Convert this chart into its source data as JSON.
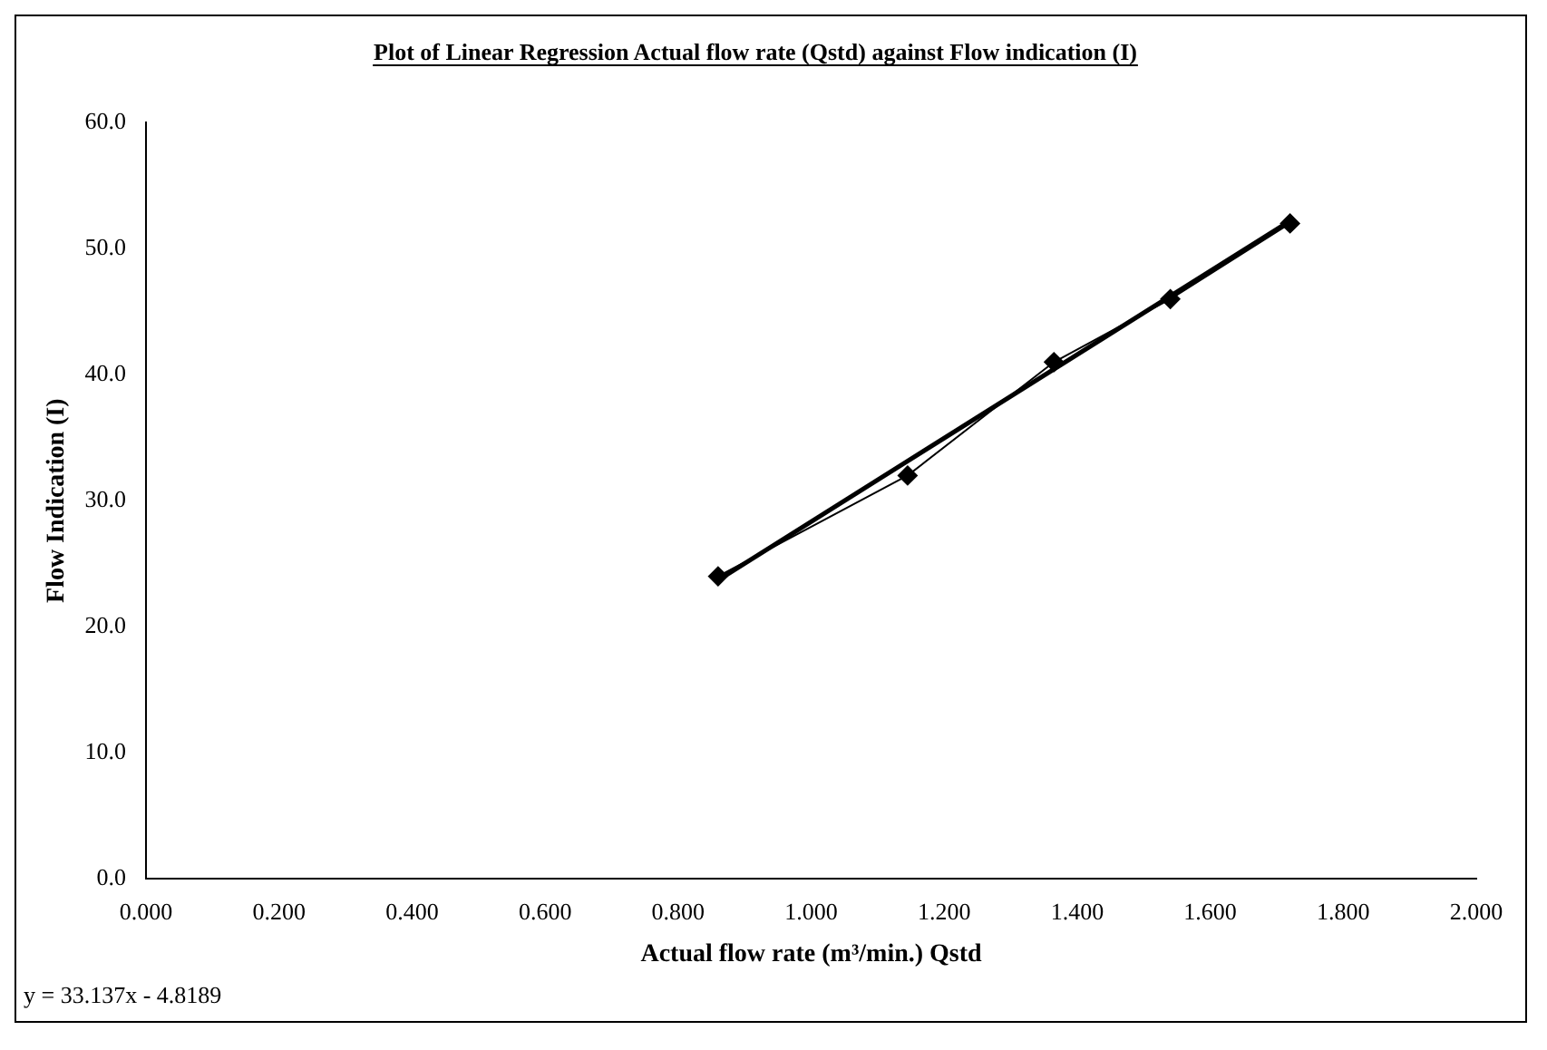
{
  "chart_data": {
    "type": "line",
    "title": "Plot of Linear Regression Actual flow rate (Qstd) against Flow indication (I)",
    "xlabel": "Actual flow rate (m³/min.) Qstd",
    "ylabel": "Flow Indication (I)",
    "xlim": [
      0,
      2
    ],
    "xticks": [
      {
        "value": 0,
        "label": "0.000"
      },
      {
        "value": 0.2,
        "label": "0.200"
      },
      {
        "value": 0.4,
        "label": "0.400"
      },
      {
        "value": 0.6,
        "label": "0.600"
      },
      {
        "value": 0.8,
        "label": "0.800"
      },
      {
        "value": 1,
        "label": "1.000"
      },
      {
        "value": 1.2,
        "label": "1.200"
      },
      {
        "value": 1.4,
        "label": "1.400"
      },
      {
        "value": 1.6,
        "label": "1.600"
      },
      {
        "value": 1.8,
        "label": "1.800"
      },
      {
        "value": 2,
        "label": "2.000"
      }
    ],
    "ylim": [
      0,
      60
    ],
    "yticks": [
      {
        "value": 0,
        "label": "0.0"
      },
      {
        "value": 10,
        "label": "10.0"
      },
      {
        "value": 20,
        "label": "20.0"
      },
      {
        "value": 30,
        "label": "30.0"
      },
      {
        "value": 40,
        "label": "40.0"
      },
      {
        "value": 50,
        "label": "50.0"
      },
      {
        "value": 60,
        "label": "60.0"
      }
    ],
    "grid": false,
    "legend": false,
    "series": [
      {
        "color": "#000000",
        "marker": "diamond",
        "x": [
          0.86,
          1.145,
          1.365,
          1.54,
          1.72
        ],
        "values": [
          24,
          32,
          41,
          46,
          52
        ]
      },
      {
        "color": "#000000",
        "marker": "none",
        "x": [
          0.86,
          1.72
        ],
        "values": [
          23.7,
          52.2
        ]
      }
    ],
    "annotations": [
      "y = 33.137x - 4.8189"
    ]
  }
}
